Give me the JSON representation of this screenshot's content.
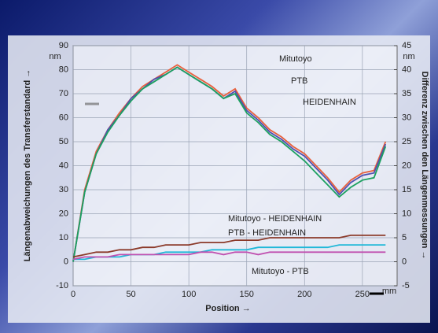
{
  "chart_data": {
    "type": "line",
    "x_label": "Position →",
    "x_unit": "mm",
    "y_label": "Längenabweichungen des Transferstandard →",
    "y_unit": "nm",
    "y2_label": "Differenz zwischen den Längenmessungen →",
    "y2_unit": "nm",
    "x": [
      0,
      10,
      20,
      30,
      40,
      50,
      60,
      70,
      80,
      90,
      100,
      110,
      120,
      130,
      140,
      150,
      160,
      170,
      180,
      190,
      200,
      210,
      220,
      230,
      240,
      250,
      260,
      270
    ],
    "xlim": [
      0,
      280
    ],
    "xticks": [
      0,
      50,
      100,
      150,
      200,
      250
    ],
    "ylim": [
      -10,
      90
    ],
    "yticks": [
      -10,
      0,
      10,
      20,
      30,
      40,
      50,
      60,
      70,
      80,
      90
    ],
    "y2lim": [
      -5,
      45
    ],
    "y2ticks": [
      -5,
      0,
      5,
      10,
      15,
      20,
      25,
      30,
      35,
      40,
      45
    ],
    "grid": true,
    "series": [
      {
        "name": "Mitutoyo",
        "color": "#e8603c",
        "values": [
          0,
          30,
          46,
          55,
          62,
          68,
          73,
          76,
          79,
          82,
          79,
          76,
          73,
          69,
          72,
          64,
          60,
          55,
          52,
          48,
          45,
          40,
          35,
          29,
          34,
          37,
          38,
          50
        ]
      },
      {
        "name": "PTB",
        "color": "#5050b0",
        "values": [
          0,
          29,
          45,
          55,
          61,
          68,
          72,
          76,
          78,
          81,
          78,
          75,
          72,
          68,
          71,
          63,
          59,
          54,
          51,
          47,
          44,
          39,
          34,
          28,
          33,
          36,
          37,
          49
        ]
      },
      {
        "name": "HEIDENHAIN",
        "color": "#1ca060",
        "values": [
          0,
          29,
          45,
          54,
          61,
          67,
          72,
          75,
          78,
          81,
          78,
          75,
          72,
          68,
          70,
          62,
          58,
          53,
          50,
          46,
          42,
          37,
          32,
          27,
          31,
          34,
          35,
          48
        ]
      },
      {
        "name": "Mitutoyo - HEIDENHAIN",
        "color": "#8b3a2a",
        "axis": "y2",
        "values": [
          1,
          1.5,
          2,
          2,
          2.5,
          2.5,
          3,
          3,
          3.5,
          3.5,
          3.5,
          4,
          4,
          4,
          4.5,
          4.5,
          4.5,
          5,
          5,
          5,
          5,
          5,
          5,
          5,
          5.5,
          5.5,
          5.5,
          5.5
        ]
      },
      {
        "name": "PTB - HEIDENHAIN",
        "color": "#20b8d8",
        "axis": "y2",
        "values": [
          0.5,
          0.5,
          1,
          1,
          1,
          1.5,
          1.5,
          1.5,
          2,
          2,
          2,
          2,
          2.5,
          2.5,
          2.5,
          2.5,
          3,
          3,
          3,
          3,
          3,
          3,
          3,
          3.5,
          3.5,
          3.5,
          3.5,
          3.5
        ]
      },
      {
        "name": "Mitutoyo - PTB",
        "color": "#c050b0",
        "axis": "y2",
        "values": [
          0.5,
          1,
          1,
          1,
          1.5,
          1.5,
          1.5,
          1.5,
          1.5,
          1.5,
          1.5,
          2,
          2,
          1.5,
          2,
          2,
          1.5,
          2,
          2,
          2,
          2,
          2,
          2,
          2,
          2,
          2,
          2,
          2
        ]
      }
    ]
  }
}
